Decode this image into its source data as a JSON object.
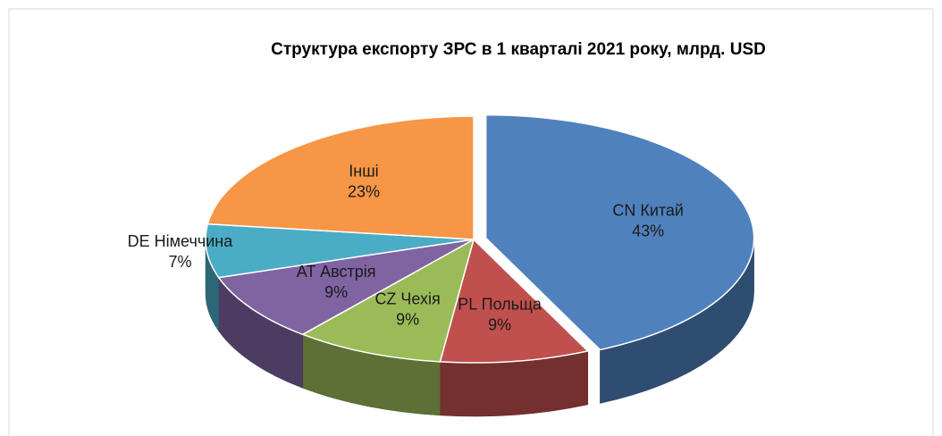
{
  "chart_data": {
    "type": "pie3d",
    "title": "Структура експорту ЗРС в 1 кварталі 2021 року, млрд. USD",
    "categories": [
      "CN Китай",
      "PL Польща",
      "CZ Чехія",
      "AT Австрія",
      "DE Німеччина",
      "Інші"
    ],
    "values": [
      43,
      9,
      9,
      9,
      7,
      23
    ],
    "value_labels": [
      "43%",
      "9%",
      "9%",
      "9%",
      "7%",
      "23%"
    ],
    "colors": [
      "#4f81bd",
      "#c0504d",
      "#9bbb59",
      "#8064a2",
      "#4bacc6",
      "#f79646"
    ]
  }
}
